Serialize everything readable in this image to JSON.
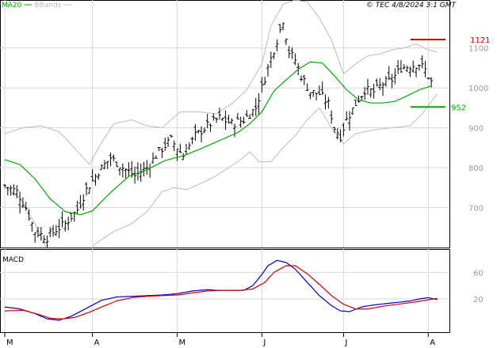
{
  "header": {
    "ma_label": "MA20",
    "bb_label": "BBands",
    "stamp": "© TEC 4/8/2024 3:1 GMT"
  },
  "colors": {
    "price": "#000000",
    "ma20": "#00aa00",
    "bbands": "#bbbbbb",
    "resistance": "#cc0000",
    "support": "#00aa00",
    "macd": "#0000cc",
    "signal": "#cc0000",
    "grid": "#d8d8d8"
  },
  "chart_data": [
    {
      "type": "candlestick",
      "title": "",
      "y_ticks": [
        700,
        800,
        900,
        1000,
        1100
      ],
      "y_tick_labels": [
        "700",
        "800",
        "900",
        "1000",
        "1100"
      ],
      "ylim": [
        600,
        1220
      ],
      "x_month_labels": [
        "M",
        "A",
        "M",
        "J",
        "J",
        "A"
      ],
      "x_month_positions": [
        0,
        29,
        57,
        85,
        112,
        140
      ],
      "x_range": [
        0,
        147
      ],
      "resistance": {
        "value": 1121,
        "label": "1121"
      },
      "support": {
        "value": 952,
        "label": "952"
      },
      "price_anchors": [
        [
          0,
          755
        ],
        [
          4,
          740
        ],
        [
          7,
          700
        ],
        [
          10,
          640
        ],
        [
          14,
          625
        ],
        [
          17,
          645
        ],
        [
          20,
          660
        ],
        [
          24,
          695
        ],
        [
          27,
          745
        ],
        [
          31,
          790
        ],
        [
          35,
          825
        ],
        [
          39,
          800
        ],
        [
          43,
          780
        ],
        [
          47,
          800
        ],
        [
          51,
          840
        ],
        [
          55,
          870
        ],
        [
          59,
          830
        ],
        [
          63,
          880
        ],
        [
          67,
          905
        ],
        [
          71,
          925
        ],
        [
          75,
          910
        ],
        [
          79,
          920
        ],
        [
          83,
          950
        ],
        [
          85,
          1000
        ],
        [
          87,
          1050
        ],
        [
          90,
          1120
        ],
        [
          92,
          1170
        ],
        [
          94,
          1090
        ],
        [
          96,
          1070
        ],
        [
          98,
          1030
        ],
        [
          101,
          990
        ],
        [
          104,
          985
        ],
        [
          107,
          960
        ],
        [
          109,
          900
        ],
        [
          111,
          880
        ],
        [
          113,
          920
        ],
        [
          116,
          960
        ],
        [
          119,
          995
        ],
        [
          122,
          990
        ],
        [
          125,
          1010
        ],
        [
          128,
          1020
        ],
        [
          131,
          1050
        ],
        [
          134,
          1055
        ],
        [
          137,
          1060
        ],
        [
          139,
          1045
        ],
        [
          141,
          1015
        ]
      ],
      "ma20_anchors": [
        [
          0,
          820
        ],
        [
          5,
          808
        ],
        [
          10,
          772
        ],
        [
          15,
          722
        ],
        [
          20,
          690
        ],
        [
          25,
          682
        ],
        [
          29,
          692
        ],
        [
          35,
          738
        ],
        [
          41,
          778
        ],
        [
          47,
          795
        ],
        [
          53,
          818
        ],
        [
          59,
          830
        ],
        [
          65,
          848
        ],
        [
          71,
          868
        ],
        [
          77,
          888
        ],
        [
          81,
          910
        ],
        [
          85,
          940
        ],
        [
          89,
          992
        ],
        [
          93,
          1020
        ],
        [
          97,
          1046
        ],
        [
          101,
          1065
        ],
        [
          105,
          1062
        ],
        [
          109,
          1030
        ],
        [
          113,
          995
        ],
        [
          117,
          970
        ],
        [
          121,
          962
        ],
        [
          125,
          962
        ],
        [
          129,
          966
        ],
        [
          133,
          980
        ],
        [
          137,
          995
        ],
        [
          141,
          1005
        ]
      ],
      "bb_upper_anchors": [
        [
          0,
          885
        ],
        [
          6,
          900
        ],
        [
          12,
          905
        ],
        [
          18,
          890
        ],
        [
          22,
          858
        ],
        [
          28,
          808
        ],
        [
          31,
          850
        ],
        [
          36,
          910
        ],
        [
          42,
          920
        ],
        [
          47,
          905
        ],
        [
          52,
          900
        ],
        [
          58,
          940
        ],
        [
          64,
          940
        ],
        [
          70,
          935
        ],
        [
          75,
          960
        ],
        [
          80,
          995
        ],
        [
          85,
          1060
        ],
        [
          88,
          1155
        ],
        [
          92,
          1210
        ],
        [
          96,
          1220
        ],
        [
          100,
          1215
        ],
        [
          104,
          1175
        ],
        [
          108,
          1120
        ],
        [
          112,
          1035
        ],
        [
          116,
          1060
        ],
        [
          120,
          1080
        ],
        [
          124,
          1085
        ],
        [
          128,
          1095
        ],
        [
          132,
          1100
        ],
        [
          136,
          1110
        ],
        [
          140,
          1095
        ],
        [
          143,
          1090
        ]
      ],
      "bb_lower_anchors": [
        [
          0,
          750
        ],
        [
          5,
          725
        ],
        [
          10,
          660
        ],
        [
          14,
          595
        ],
        [
          20,
          575
        ],
        [
          26,
          570
        ],
        [
          30,
          610
        ],
        [
          36,
          640
        ],
        [
          42,
          660
        ],
        [
          47,
          690
        ],
        [
          52,
          740
        ],
        [
          56,
          750
        ],
        [
          60,
          745
        ],
        [
          66,
          765
        ],
        [
          70,
          780
        ],
        [
          74,
          800
        ],
        [
          78,
          820
        ],
        [
          81,
          840
        ],
        [
          84,
          815
        ],
        [
          88,
          815
        ],
        [
          92,
          850
        ],
        [
          96,
          880
        ],
        [
          100,
          920
        ],
        [
          104,
          950
        ],
        [
          108,
          900
        ],
        [
          112,
          860
        ],
        [
          116,
          885
        ],
        [
          122,
          895
        ],
        [
          128,
          900
        ],
        [
          134,
          905
        ],
        [
          138,
          935
        ],
        [
          143,
          985
        ]
      ]
    },
    {
      "type": "line",
      "title": "MACD",
      "y_ticks": [
        20,
        60
      ],
      "y_tick_labels": [
        "20",
        "60"
      ],
      "ylim": [
        -30,
        95
      ],
      "series": [
        {
          "name": "",
          "anchors": [
            [
              0,
              8
            ],
            [
              5,
              5
            ],
            [
              10,
              -2
            ],
            [
              14,
              -10
            ],
            [
              18,
              -12
            ],
            [
              22,
              -6
            ],
            [
              27,
              6
            ],
            [
              32,
              18
            ],
            [
              37,
              23
            ],
            [
              42,
              24
            ],
            [
              47,
              25
            ],
            [
              52,
              26
            ],
            [
              57,
              28
            ],
            [
              62,
              32
            ],
            [
              67,
              34
            ],
            [
              70,
              33
            ],
            [
              75,
              33
            ],
            [
              79,
              33
            ],
            [
              82,
              40
            ],
            [
              85,
              57
            ],
            [
              87,
              70
            ],
            [
              90,
              78
            ],
            [
              93,
              75
            ],
            [
              96,
              65
            ],
            [
              100,
              45
            ],
            [
              104,
              25
            ],
            [
              108,
              10
            ],
            [
              111,
              2
            ],
            [
              114,
              1
            ],
            [
              118,
              8
            ],
            [
              122,
              11
            ],
            [
              126,
              13
            ],
            [
              130,
              15
            ],
            [
              134,
              17
            ],
            [
              137,
              20
            ],
            [
              140,
              22
            ],
            [
              143,
              19
            ]
          ]
        },
        {
          "name": "",
          "anchors": [
            [
              0,
              2
            ],
            [
              6,
              3
            ],
            [
              11,
              -3
            ],
            [
              15,
              -9
            ],
            [
              19,
              -10
            ],
            [
              23,
              -8
            ],
            [
              28,
              0
            ],
            [
              32,
              8
            ],
            [
              37,
              17
            ],
            [
              42,
              22
            ],
            [
              47,
              24
            ],
            [
              52,
              25
            ],
            [
              57,
              26
            ],
            [
              62,
              29
            ],
            [
              67,
              32
            ],
            [
              72,
              33
            ],
            [
              78,
              33
            ],
            [
              82,
              35
            ],
            [
              86,
              45
            ],
            [
              89,
              60
            ],
            [
              93,
              70
            ],
            [
              96,
              70
            ],
            [
              100,
              58
            ],
            [
              104,
              42
            ],
            [
              108,
              25
            ],
            [
              112,
              12
            ],
            [
              116,
              5
            ],
            [
              120,
              5
            ],
            [
              125,
              9
            ],
            [
              130,
              12
            ],
            [
              135,
              15
            ],
            [
              139,
              18
            ],
            [
              143,
              21
            ]
          ]
        }
      ]
    }
  ]
}
